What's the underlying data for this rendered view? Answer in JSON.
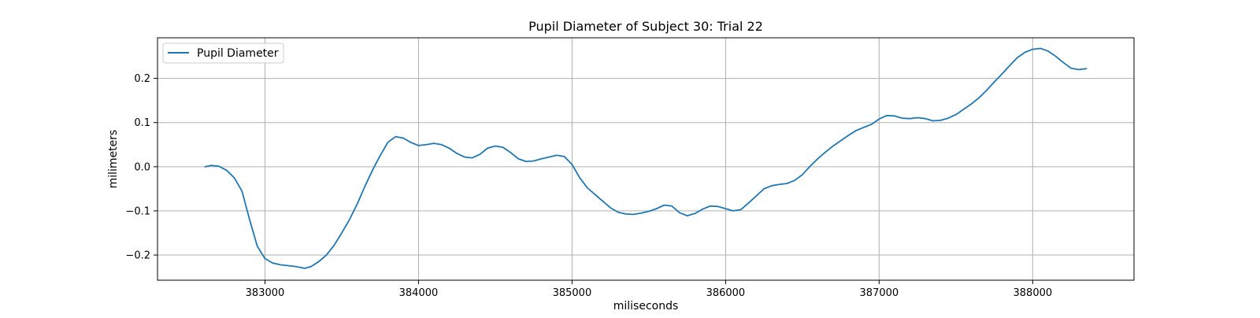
{
  "chart_data": {
    "type": "line",
    "title": "Pupil Diameter of Subject 30: Trial 22",
    "xlabel": "miliseconds",
    "ylabel": "milimeters",
    "xlim": [
      382300,
      388660
    ],
    "ylim": [
      -0.257,
      0.292
    ],
    "x_ticks": [
      383000,
      384000,
      385000,
      386000,
      387000,
      388000
    ],
    "x_tick_labels": [
      "383000",
      "384000",
      "385000",
      "386000",
      "387000",
      "388000"
    ],
    "y_ticks": [
      -0.2,
      -0.1,
      0.0,
      0.1,
      0.2
    ],
    "y_tick_labels": [
      "−0.2",
      "−0.1",
      "0.0",
      "0.1",
      "0.2"
    ],
    "grid": true,
    "legend_position": "top-left",
    "series": [
      {
        "name": "Pupil Diameter",
        "color": "#1f77b4",
        "points": [
          [
            382610,
            0.0
          ],
          [
            382650,
            0.003
          ],
          [
            382700,
            0.001
          ],
          [
            382750,
            -0.008
          ],
          [
            382800,
            -0.025
          ],
          [
            382850,
            -0.055
          ],
          [
            382900,
            -0.12
          ],
          [
            382950,
            -0.18
          ],
          [
            383000,
            -0.208
          ],
          [
            383050,
            -0.218
          ],
          [
            383100,
            -0.222
          ],
          [
            383150,
            -0.224
          ],
          [
            383200,
            -0.226
          ],
          [
            383260,
            -0.23
          ],
          [
            383300,
            -0.226
          ],
          [
            383350,
            -0.215
          ],
          [
            383400,
            -0.2
          ],
          [
            383450,
            -0.178
          ],
          [
            383500,
            -0.15
          ],
          [
            383550,
            -0.12
          ],
          [
            383600,
            -0.085
          ],
          [
            383650,
            -0.045
          ],
          [
            383700,
            -0.008
          ],
          [
            383750,
            0.025
          ],
          [
            383800,
            0.055
          ],
          [
            383850,
            0.068
          ],
          [
            383900,
            0.065
          ],
          [
            383950,
            0.055
          ],
          [
            384000,
            0.048
          ],
          [
            384050,
            0.05
          ],
          [
            384100,
            0.053
          ],
          [
            384150,
            0.05
          ],
          [
            384200,
            0.042
          ],
          [
            384250,
            0.03
          ],
          [
            384300,
            0.022
          ],
          [
            384350,
            0.02
          ],
          [
            384400,
            0.028
          ],
          [
            384450,
            0.042
          ],
          [
            384500,
            0.047
          ],
          [
            384550,
            0.044
          ],
          [
            384600,
            0.032
          ],
          [
            384650,
            0.018
          ],
          [
            384700,
            0.012
          ],
          [
            384750,
            0.013
          ],
          [
            384800,
            0.018
          ],
          [
            384850,
            0.022
          ],
          [
            384900,
            0.026
          ],
          [
            384950,
            0.023
          ],
          [
            385000,
            0.005
          ],
          [
            385050,
            -0.025
          ],
          [
            385100,
            -0.048
          ],
          [
            385150,
            -0.063
          ],
          [
            385200,
            -0.078
          ],
          [
            385250,
            -0.093
          ],
          [
            385300,
            -0.103
          ],
          [
            385350,
            -0.107
          ],
          [
            385400,
            -0.108
          ],
          [
            385450,
            -0.105
          ],
          [
            385500,
            -0.101
          ],
          [
            385550,
            -0.095
          ],
          [
            385600,
            -0.087
          ],
          [
            385650,
            -0.089
          ],
          [
            385700,
            -0.104
          ],
          [
            385750,
            -0.111
          ],
          [
            385800,
            -0.106
          ],
          [
            385850,
            -0.096
          ],
          [
            385900,
            -0.089
          ],
          [
            385950,
            -0.09
          ],
          [
            386000,
            -0.095
          ],
          [
            386050,
            -0.1
          ],
          [
            386100,
            -0.097
          ],
          [
            386150,
            -0.082
          ],
          [
            386200,
            -0.066
          ],
          [
            386250,
            -0.05
          ],
          [
            386300,
            -0.043
          ],
          [
            386350,
            -0.04
          ],
          [
            386400,
            -0.038
          ],
          [
            386450,
            -0.031
          ],
          [
            386500,
            -0.018
          ],
          [
            386550,
            0.001
          ],
          [
            386600,
            0.018
          ],
          [
            386650,
            0.033
          ],
          [
            386700,
            0.047
          ],
          [
            386750,
            0.059
          ],
          [
            386800,
            0.071
          ],
          [
            386850,
            0.082
          ],
          [
            386900,
            0.089
          ],
          [
            386950,
            0.096
          ],
          [
            387000,
            0.108
          ],
          [
            387050,
            0.116
          ],
          [
            387100,
            0.115
          ],
          [
            387150,
            0.11
          ],
          [
            387200,
            0.109
          ],
          [
            387250,
            0.111
          ],
          [
            387300,
            0.109
          ],
          [
            387350,
            0.104
          ],
          [
            387400,
            0.105
          ],
          [
            387450,
            0.11
          ],
          [
            387500,
            0.118
          ],
          [
            387550,
            0.13
          ],
          [
            387600,
            0.142
          ],
          [
            387650,
            0.156
          ],
          [
            387700,
            0.173
          ],
          [
            387750,
            0.192
          ],
          [
            387800,
            0.21
          ],
          [
            387850,
            0.229
          ],
          [
            387900,
            0.247
          ],
          [
            387950,
            0.259
          ],
          [
            388000,
            0.266
          ],
          [
            388050,
            0.268
          ],
          [
            388100,
            0.262
          ],
          [
            388150,
            0.25
          ],
          [
            388200,
            0.236
          ],
          [
            388250,
            0.223
          ],
          [
            388300,
            0.22
          ],
          [
            388350,
            0.222
          ]
        ]
      }
    ]
  }
}
